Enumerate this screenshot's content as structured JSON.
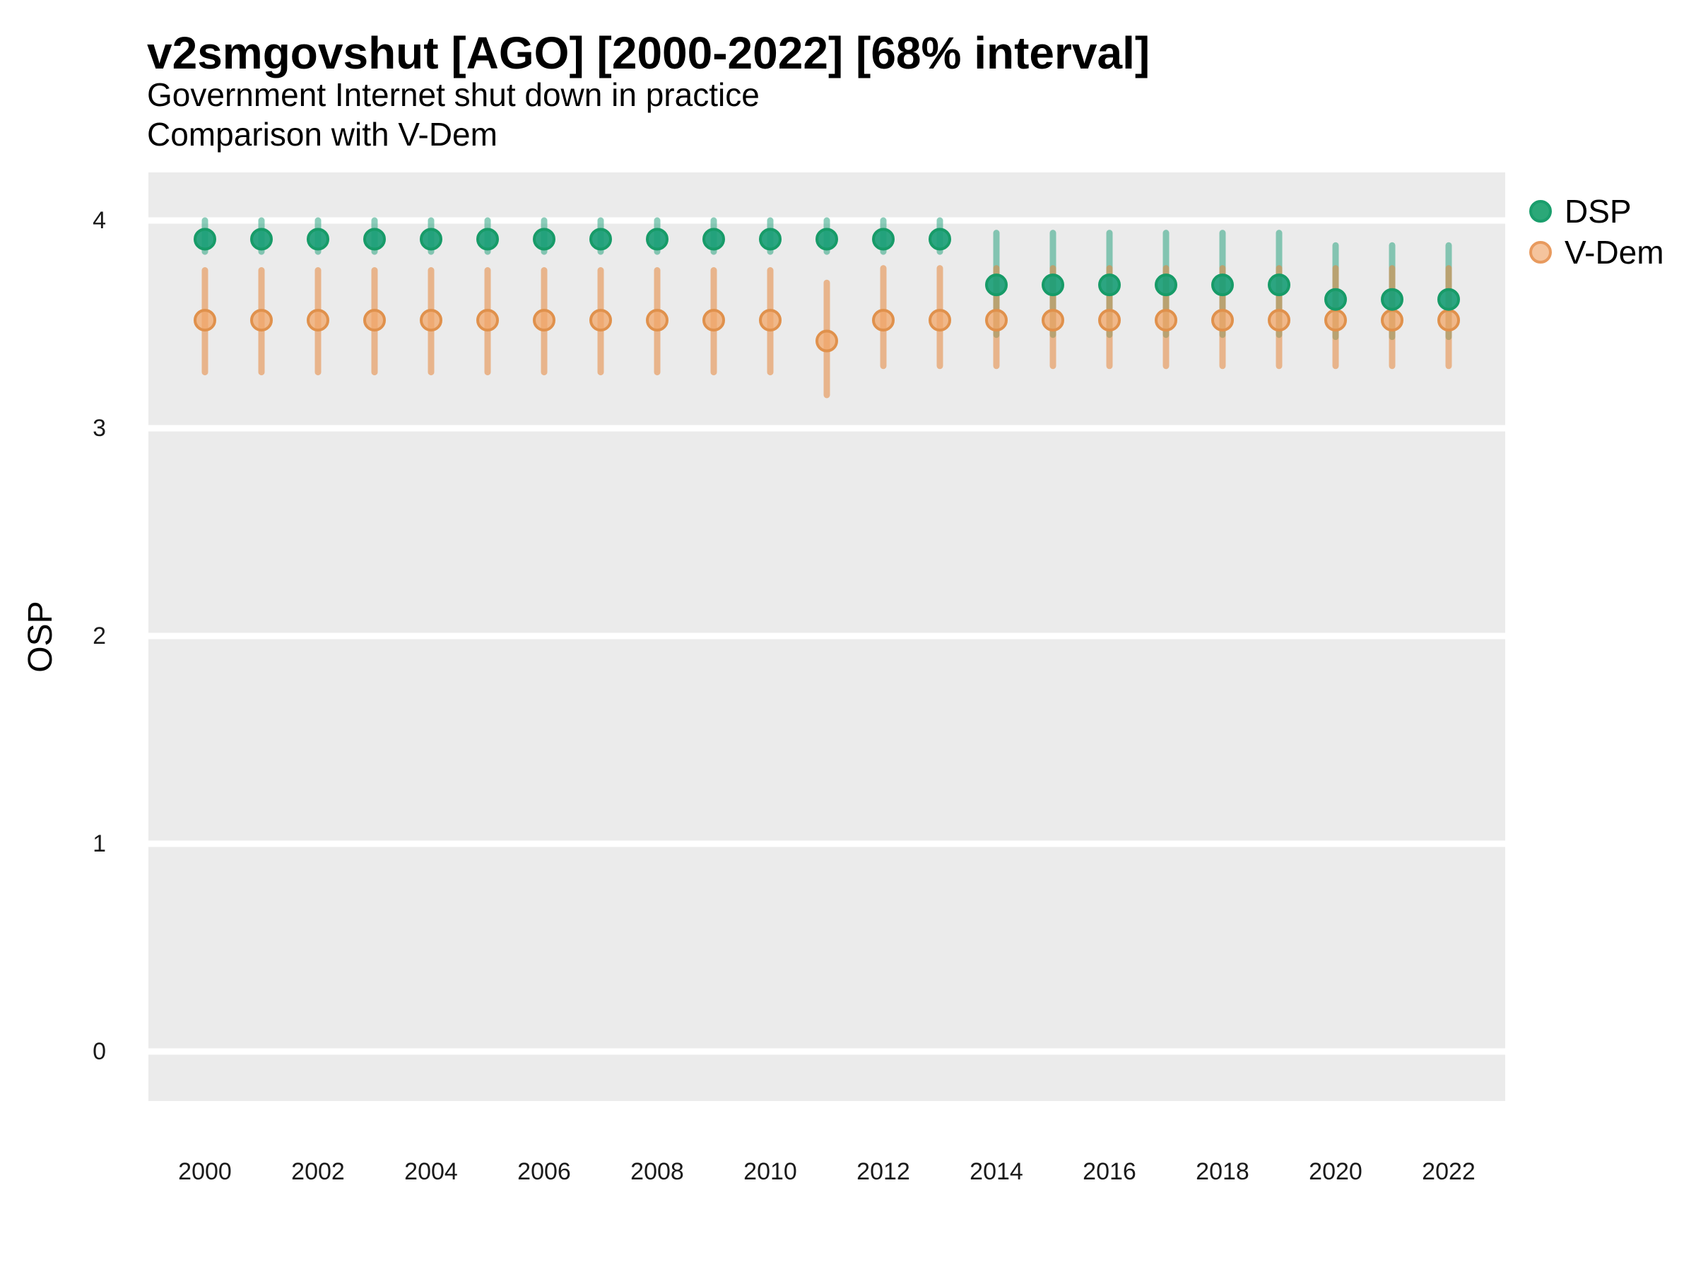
{
  "header": {
    "title": "v2smgovshut [AGO] [2000-2022] [68% interval]",
    "subtitle1": "Government Internet shut down in practice",
    "subtitle2": "Comparison with V-Dem"
  },
  "axes": {
    "y_label": "OSP",
    "y_ticks": [
      4,
      3,
      2,
      1,
      0
    ],
    "x_ticks": [
      2000,
      2002,
      2004,
      2006,
      2008,
      2010,
      2012,
      2014,
      2016,
      2018,
      2020,
      2022
    ]
  },
  "legend": {
    "items": [
      {
        "label": "DSP"
      },
      {
        "label": "V-Dem"
      }
    ]
  },
  "colors": {
    "panel_bg": "#ebebeb",
    "gridline": "#ffffff",
    "dsp_bar": "rgba(27,158,119,0.5)",
    "dsp_fill": "rgba(27,158,119,0.92)",
    "dsp_stroke": "#179b68",
    "vdem_bar": "rgba(230,135,60,0.55)",
    "vdem_fill": "rgba(242,167,106,0.75)",
    "vdem_stroke": "#e0914c",
    "legend_dsp_fill": "#2ba878",
    "legend_dsp_stroke": "#1a9e6c",
    "legend_vdem_fill": "#f5c49d",
    "legend_vdem_stroke": "#e89a5e"
  },
  "chart_data": {
    "type": "scatter",
    "mark": "pointrange",
    "title": "v2smgovshut [AGO] [2000-2022] [68% interval]",
    "subtitle": "Government Internet shut down in practice — Comparison with V-Dem",
    "xlabel": "",
    "ylabel": "OSP",
    "interval": "68%",
    "ylim": [
      -0.25,
      4.23
    ],
    "grid": "horizontal-major-only",
    "legend_position": "right-top",
    "x": [
      2000,
      2001,
      2002,
      2003,
      2004,
      2005,
      2006,
      2007,
      2008,
      2009,
      2010,
      2011,
      2012,
      2013,
      2014,
      2015,
      2016,
      2017,
      2018,
      2019,
      2020,
      2021,
      2022
    ],
    "series": [
      {
        "name": "DSP",
        "values": [
          3.91,
          3.91,
          3.91,
          3.91,
          3.91,
          3.91,
          3.91,
          3.91,
          3.91,
          3.91,
          3.91,
          3.91,
          3.91,
          3.91,
          3.69,
          3.69,
          3.69,
          3.69,
          3.69,
          3.69,
          3.62,
          3.62,
          3.62
        ],
        "lo": [
          3.85,
          3.85,
          3.85,
          3.85,
          3.85,
          3.85,
          3.85,
          3.85,
          3.85,
          3.85,
          3.85,
          3.85,
          3.85,
          3.85,
          3.45,
          3.45,
          3.45,
          3.45,
          3.45,
          3.45,
          3.44,
          3.44,
          3.44
        ],
        "hi": [
          4.0,
          4.0,
          4.0,
          4.0,
          4.0,
          4.0,
          4.0,
          4.0,
          4.0,
          4.0,
          4.0,
          4.0,
          4.0,
          4.0,
          3.94,
          3.94,
          3.94,
          3.94,
          3.94,
          3.94,
          3.88,
          3.88,
          3.88
        ]
      },
      {
        "name": "V-Dem",
        "values": [
          3.52,
          3.52,
          3.52,
          3.52,
          3.52,
          3.52,
          3.52,
          3.52,
          3.52,
          3.52,
          3.52,
          3.42,
          3.52,
          3.52,
          3.52,
          3.52,
          3.52,
          3.52,
          3.52,
          3.52,
          3.52,
          3.52,
          3.52
        ],
        "lo": [
          3.27,
          3.27,
          3.27,
          3.27,
          3.27,
          3.27,
          3.27,
          3.27,
          3.27,
          3.27,
          3.27,
          3.16,
          3.3,
          3.3,
          3.3,
          3.3,
          3.3,
          3.3,
          3.3,
          3.3,
          3.3,
          3.3,
          3.3
        ],
        "hi": [
          3.76,
          3.76,
          3.76,
          3.76,
          3.76,
          3.76,
          3.76,
          3.76,
          3.76,
          3.76,
          3.76,
          3.7,
          3.77,
          3.77,
          3.77,
          3.77,
          3.77,
          3.77,
          3.77,
          3.77,
          3.77,
          3.77,
          3.77
        ]
      }
    ]
  }
}
